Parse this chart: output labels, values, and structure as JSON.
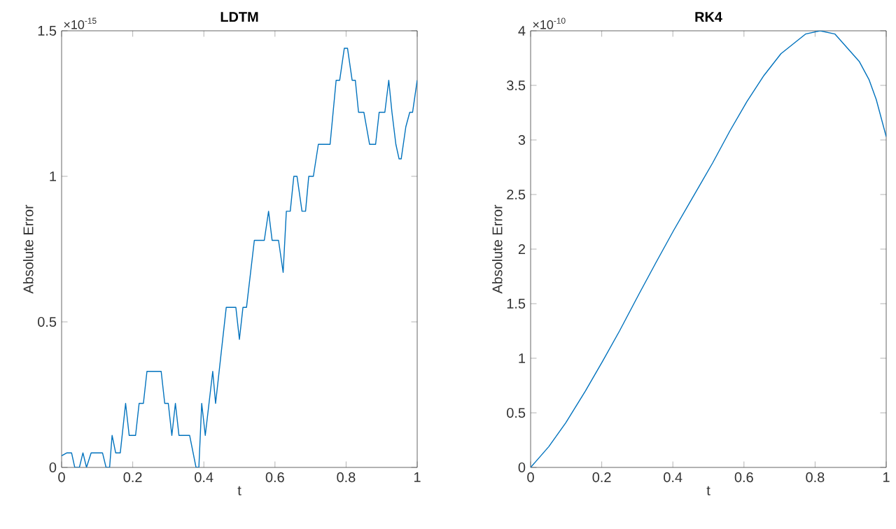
{
  "chart_data": [
    {
      "type": "line",
      "title": "LDTM",
      "xlabel": "t",
      "ylabel": "Absolute Error",
      "annotations": [
        "×10$^{-15}$"
      ],
      "xlim": [
        0,
        1
      ],
      "ylim": [
        0,
        1.5
      ],
      "xticks": [
        0,
        0.2,
        0.4,
        0.6,
        0.8,
        1
      ],
      "yticks": [
        0,
        0.5,
        1,
        1.5
      ],
      "series": [
        {
          "color": "#0072bd",
          "x": [
            0,
            0.015,
            0.028,
            0.037,
            0.05,
            0.06,
            0.07,
            0.083,
            0.115,
            0.125,
            0.135,
            0.142,
            0.152,
            0.165,
            0.18,
            0.19,
            0.208,
            0.218,
            0.23,
            0.24,
            0.28,
            0.29,
            0.3,
            0.31,
            0.32,
            0.33,
            0.36,
            0.378,
            0.386,
            0.394,
            0.404,
            0.425,
            0.433,
            0.463,
            0.49,
            0.5,
            0.51,
            0.52,
            0.542,
            0.57,
            0.582,
            0.592,
            0.61,
            0.623,
            0.632,
            0.643,
            0.653,
            0.662,
            0.676,
            0.686,
            0.695,
            0.708,
            0.722,
            0.755,
            0.772,
            0.782,
            0.795,
            0.804,
            0.817,
            0.826,
            0.835,
            0.85,
            0.866,
            0.883,
            0.893,
            0.909,
            0.92,
            0.929,
            0.94,
            0.949,
            0.955,
            0.968,
            0.979,
            0.987,
            1
          ],
          "values": [
            0.04,
            0.05,
            0.05,
            0,
            0,
            0.05,
            0,
            0.05,
            0.05,
            0,
            0,
            0.11,
            0.05,
            0.05,
            0.22,
            0.11,
            0.11,
            0.22,
            0.22,
            0.33,
            0.33,
            0.22,
            0.22,
            0.11,
            0.22,
            0.11,
            0.11,
            0,
            0,
            0.22,
            0.11,
            0.33,
            0.22,
            0.55,
            0.55,
            0.44,
            0.55,
            0.55,
            0.78,
            0.78,
            0.88,
            0.78,
            0.78,
            0.67,
            0.88,
            0.88,
            1.0,
            1.0,
            0.88,
            0.88,
            1.0,
            1.0,
            1.11,
            1.11,
            1.33,
            1.33,
            1.44,
            1.44,
            1.33,
            1.33,
            1.22,
            1.22,
            1.11,
            1.11,
            1.22,
            1.22,
            1.33,
            1.22,
            1.11,
            1.06,
            1.06,
            1.17,
            1.22,
            1.22,
            1.33
          ]
        }
      ]
    },
    {
      "type": "line",
      "title": "RK4",
      "xlabel": "t",
      "ylabel": "Absolute Error",
      "annotations": [
        "×10$^{-10}$"
      ],
      "xlim": [
        0,
        1
      ],
      "ylim": [
        0,
        4
      ],
      "xticks": [
        0,
        0.2,
        0.4,
        0.6,
        0.8,
        1
      ],
      "yticks": [
        0,
        0.5,
        1,
        1.5,
        2,
        2.5,
        3,
        3.5,
        4
      ],
      "series": [
        {
          "color": "#0072bd",
          "x": [
            0,
            0.051,
            0.099,
            0.154,
            0.202,
            0.25,
            0.305,
            0.353,
            0.402,
            0.457,
            0.512,
            0.56,
            0.608,
            0.656,
            0.704,
            0.773,
            0.814,
            0.856,
            0.924,
            0.952,
            0.972,
            1
          ],
          "values": [
            0,
            0.19,
            0.41,
            0.7,
            0.97,
            1.25,
            1.59,
            1.88,
            2.17,
            2.48,
            2.79,
            3.08,
            3.35,
            3.59,
            3.79,
            3.97,
            4.0,
            3.97,
            3.72,
            3.55,
            3.37,
            3.03
          ]
        }
      ]
    }
  ]
}
